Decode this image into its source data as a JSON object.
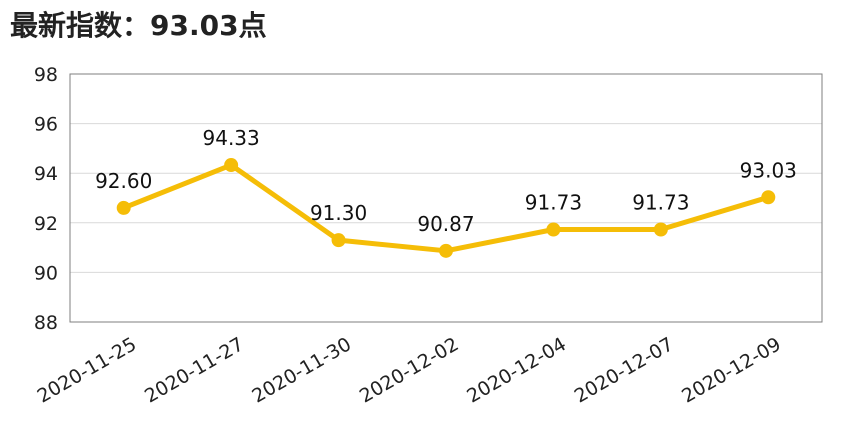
{
  "header": {
    "title_prefix": "最新指数：",
    "title_value": "93.03",
    "title_unit": "点"
  },
  "colors": {
    "line": "#f5bd07",
    "grid": "#d9d9d9",
    "axis": "#7f7f7f",
    "text": "#222222"
  },
  "chart_data": {
    "type": "line",
    "title": "",
    "xlabel": "",
    "ylabel": "",
    "categories": [
      "2020-11-25",
      "2020-11-27",
      "2020-11-30",
      "2020-12-02",
      "2020-12-04",
      "2020-12-07",
      "2020-12-09"
    ],
    "series": [
      {
        "values": [
          92.6,
          94.33,
          91.3,
          90.87,
          91.73,
          91.73,
          93.03
        ],
        "labels": [
          "92.60",
          "94.33",
          "91.30",
          "90.87",
          "91.73",
          "91.73",
          "93.03"
        ]
      }
    ],
    "ylim": [
      88,
      98
    ],
    "yticks": [
      88,
      90,
      92,
      94,
      96,
      98
    ],
    "grid": true,
    "legend": "none"
  }
}
